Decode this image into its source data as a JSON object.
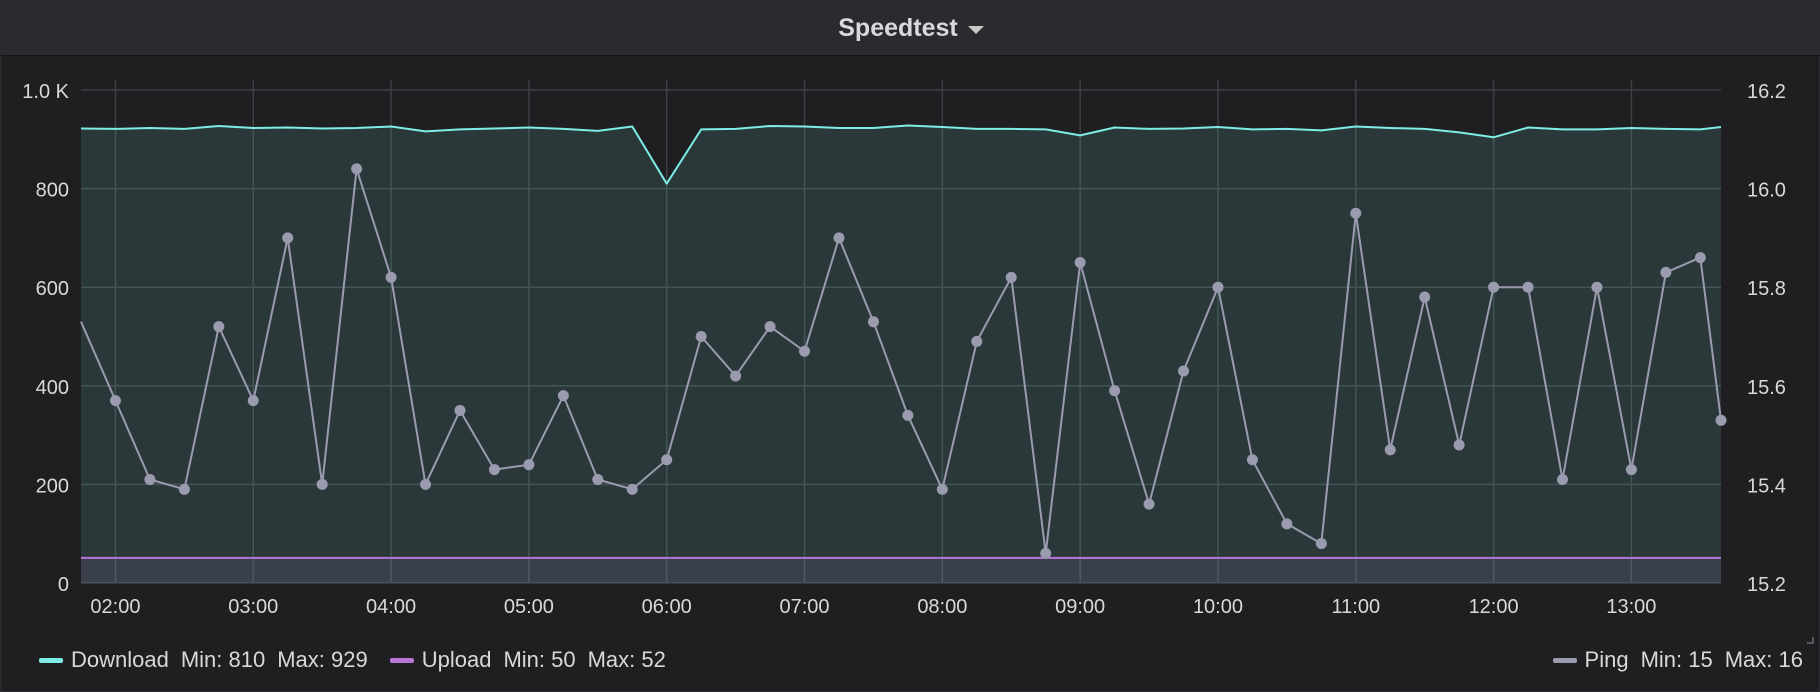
{
  "panel": {
    "title": "Speedtest"
  },
  "legend": [
    {
      "name": "Download",
      "color": "#7eede6",
      "min_label": "Min: 810",
      "max_label": "Max: 929",
      "side": "left"
    },
    {
      "name": "Upload",
      "color": "#b877d9",
      "min_label": "Min: 50",
      "max_label": "Max: 52",
      "side": "left"
    },
    {
      "name": "Ping",
      "color": "#9b9bb0",
      "min_label": "Min: 15",
      "max_label": "Max: 16",
      "side": "right"
    }
  ],
  "chart_data": {
    "type": "line",
    "title": "Speedtest",
    "x_ticks": [
      "02:00",
      "03:00",
      "04:00",
      "05:00",
      "06:00",
      "07:00",
      "08:00",
      "09:00",
      "10:00",
      "11:00",
      "12:00",
      "13:00"
    ],
    "y_left": {
      "ticks": [
        "0",
        "200",
        "400",
        "600",
        "800",
        "1.0 K"
      ],
      "range": [
        0,
        1000
      ]
    },
    "y_right": {
      "ticks": [
        "15.2",
        "15.4",
        "15.6",
        "15.8",
        "16.0",
        "16.2"
      ],
      "range": [
        15.2,
        16.2
      ]
    },
    "x_range_hours": [
      1.75,
      13.65
    ],
    "grid": true,
    "legend_position": "bottom",
    "series": [
      {
        "name": "Download",
        "axis": "left",
        "color": "#7eede6",
        "fill": true,
        "x": [
          1.75,
          2.0,
          2.25,
          2.5,
          2.75,
          3.0,
          3.25,
          3.5,
          3.75,
          4.0,
          4.25,
          4.5,
          4.75,
          5.0,
          5.25,
          5.5,
          5.75,
          6.0,
          6.25,
          6.5,
          6.75,
          7.0,
          7.25,
          7.5,
          7.75,
          8.0,
          8.25,
          8.5,
          8.75,
          9.0,
          9.25,
          9.5,
          9.75,
          10.0,
          10.25,
          10.5,
          10.75,
          11.0,
          11.25,
          11.5,
          11.75,
          12.0,
          12.25,
          12.5,
          12.75,
          13.0,
          13.25,
          13.5,
          13.65
        ],
        "values": [
          922,
          921,
          923,
          921,
          927,
          923,
          924,
          922,
          923,
          926,
          916,
          920,
          922,
          924,
          921,
          917,
          926,
          810,
          920,
          921,
          927,
          926,
          923,
          923,
          928,
          925,
          921,
          921,
          920,
          908,
          924,
          921,
          922,
          925,
          920,
          921,
          918,
          926,
          923,
          921,
          914,
          904,
          924,
          920,
          920,
          923,
          921,
          920,
          925
        ]
      },
      {
        "name": "Upload",
        "axis": "left",
        "color": "#b877d9",
        "fill": true,
        "x": [
          1.75,
          13.65
        ],
        "values": [
          51,
          51
        ]
      },
      {
        "name": "Ping",
        "axis": "right",
        "color": "#9b9bb0",
        "markers": true,
        "x": [
          1.75,
          2.0,
          2.25,
          2.5,
          2.75,
          3.0,
          3.25,
          3.5,
          3.75,
          4.0,
          4.25,
          4.5,
          4.75,
          5.0,
          5.25,
          5.5,
          5.75,
          6.0,
          6.25,
          6.5,
          6.75,
          7.0,
          7.25,
          7.5,
          7.75,
          8.0,
          8.25,
          8.5,
          8.75,
          9.0,
          9.25,
          9.5,
          9.75,
          10.0,
          10.25,
          10.5,
          10.75,
          11.0,
          11.25,
          11.5,
          11.75,
          12.0,
          12.25,
          12.5,
          12.75,
          13.0,
          13.25,
          13.5,
          13.65
        ],
        "values": [
          15.73,
          15.57,
          15.41,
          15.39,
          15.72,
          15.57,
          15.9,
          15.4,
          16.04,
          15.82,
          15.4,
          15.55,
          15.43,
          15.44,
          15.58,
          15.41,
          15.39,
          15.45,
          15.7,
          15.62,
          15.72,
          15.67,
          15.9,
          15.73,
          15.54,
          15.39,
          15.69,
          15.82,
          15.26,
          15.85,
          15.59,
          15.36,
          15.63,
          15.8,
          15.45,
          15.32,
          15.28,
          15.95,
          15.47,
          15.78,
          15.48,
          15.8,
          15.8,
          15.41,
          15.8,
          15.43,
          15.83,
          15.86,
          15.53
        ],
        "marker_mask": [
          false,
          true,
          true,
          true,
          true,
          true,
          true,
          true,
          true,
          true,
          true,
          true,
          true,
          true,
          true,
          true,
          true,
          true,
          true,
          true,
          true,
          true,
          true,
          true,
          true,
          true,
          true,
          true,
          true,
          true,
          true,
          true,
          true,
          true,
          true,
          true,
          true,
          true,
          true,
          true,
          true,
          true,
          true,
          true,
          true,
          true,
          true,
          true,
          true
        ]
      }
    ]
  }
}
